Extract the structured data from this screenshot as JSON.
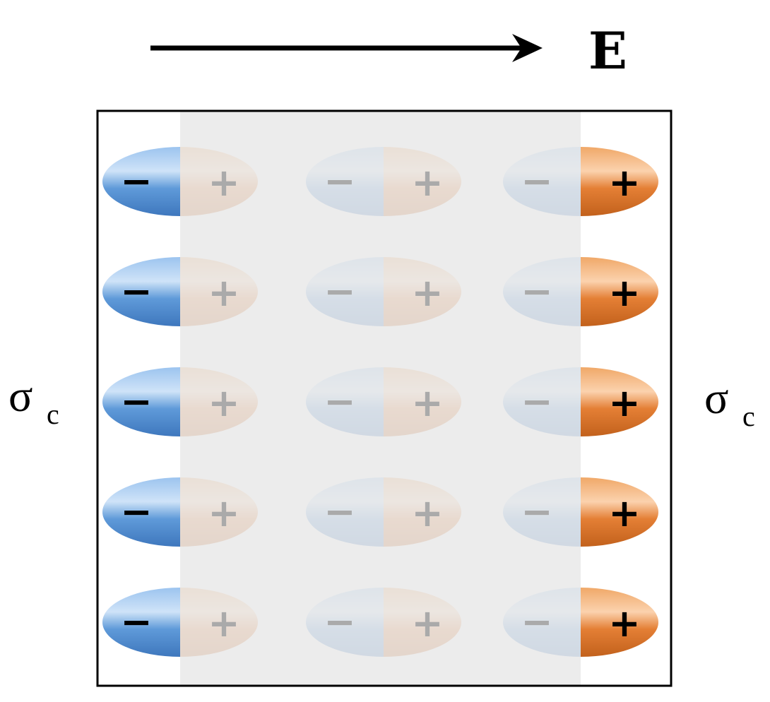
{
  "field": {
    "label": "E"
  },
  "surface_charge": {
    "symbol": "σ",
    "subscript": "c"
  },
  "dipoles": {
    "rows": 5,
    "columns": 3,
    "negative_sign": "−",
    "positive_sign": "+"
  },
  "colors": {
    "negative": "#4f8ed6",
    "positive": "#e07a30",
    "dimmed_overlay": "#e9e9e9",
    "dimmed_sign": "#aaaaaa",
    "visible_sign": "#000000",
    "border": "#000000",
    "arrow": "#000000"
  }
}
